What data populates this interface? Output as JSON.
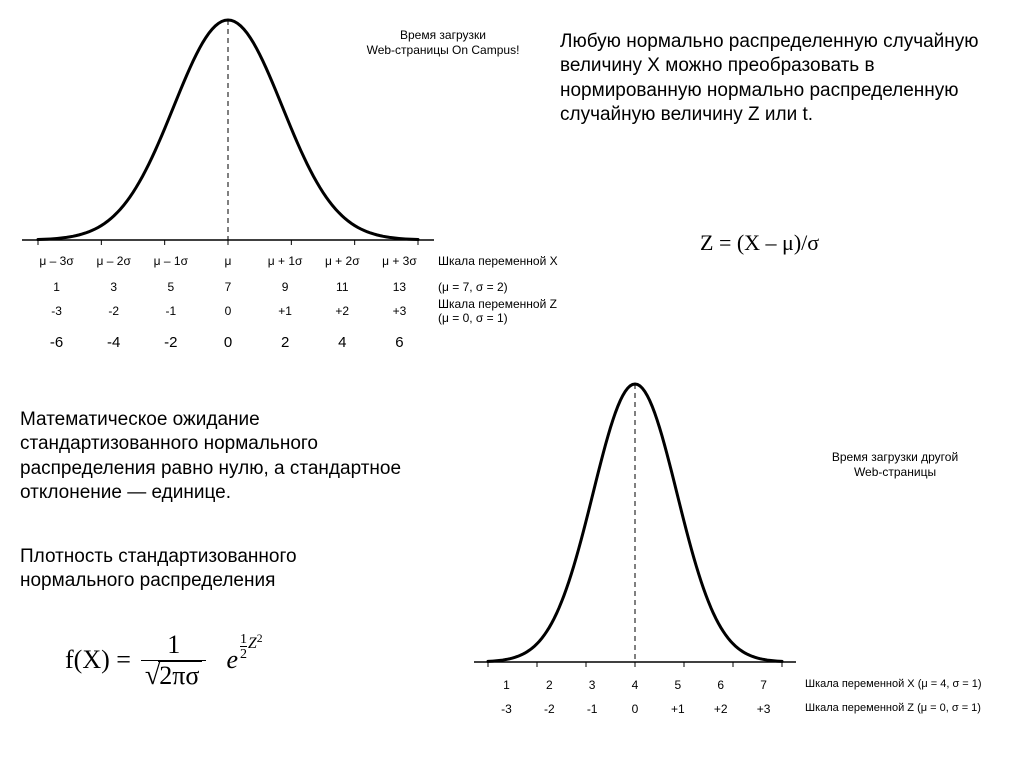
{
  "colors": {
    "background": "#ffffff",
    "text": "#000000",
    "curve": "#000000",
    "axis": "#000000",
    "dash": "#000000"
  },
  "typography": {
    "body_font": "Arial",
    "formula_font": "Times New Roman",
    "body_fontsize_pt": 14,
    "tick_fontsize_pt": 9,
    "title_fontsize_pt": 9
  },
  "paragraph1": "Любую нормально распределенную случайную величину X можно преобразовать в нормированную нормально распределенную случайную величину Z или t.",
  "formula_z": "Z = (X – μ)/σ",
  "paragraph2": "Математическое ожидание стандартизованного нормального распределения равно нулю, а стандартное отклонение — единице.",
  "paragraph3": "Плотность стандартизованного нормального распределения",
  "formula_fx": {
    "lhs": "f(X) =",
    "frac_num": "1",
    "sqrt_arg": "2πσ",
    "e_label": "e",
    "exp_num": "1",
    "exp_den": "2",
    "exp_tail": "Z",
    "exp_sq": "2"
  },
  "chart1": {
    "type": "normal-curve",
    "title_line1": "Время загрузки",
    "title_line2": "Web-страницы On Campus!",
    "curve": {
      "stroke": "#000000",
      "stroke_width": 3,
      "xlim": [
        -3.5,
        3.5
      ],
      "samples": 120
    },
    "axis_stroke": "#000000",
    "dash_stroke": "#000000",
    "row_sigma": {
      "ticks": [
        "μ – 3σ",
        "μ – 2σ",
        "μ – 1σ",
        "μ",
        "μ + 1σ",
        "μ + 2σ",
        "μ + 3σ"
      ],
      "label": "Шкала переменной X"
    },
    "row_x": {
      "ticks": [
        "1",
        "3",
        "5",
        "7",
        "9",
        "11",
        "13"
      ],
      "label": "(μ = 7, σ = 2)"
    },
    "row_z": {
      "ticks": [
        "-3",
        "-2",
        "-1",
        "0",
        "+1",
        "+2",
        "+3"
      ],
      "label_line1": "Шкала переменной Z",
      "label_line2": "(μ = 0, σ = 1)"
    },
    "row_extra": {
      "ticks": [
        "-6",
        "-4",
        "-2",
        "0",
        "2",
        "4",
        "6"
      ]
    }
  },
  "chart2": {
    "type": "normal-curve",
    "title_line1": "Время загрузки другой",
    "title_line2": "Web-страницы",
    "curve": {
      "stroke": "#000000",
      "stroke_width": 3,
      "xlim": [
        -3.5,
        3.5
      ],
      "samples": 120
    },
    "axis_stroke": "#000000",
    "dash_stroke": "#000000",
    "row_x": {
      "ticks": [
        "1",
        "2",
        "3",
        "4",
        "5",
        "6",
        "7"
      ],
      "label": "Шкала переменной X (μ = 4, σ = 1)"
    },
    "row_z": {
      "ticks": [
        "-3",
        "-2",
        "-1",
        "0",
        "+1",
        "+2",
        "+3"
      ],
      "label": "Шкала переменной Z (μ = 0, σ = 1)"
    }
  }
}
